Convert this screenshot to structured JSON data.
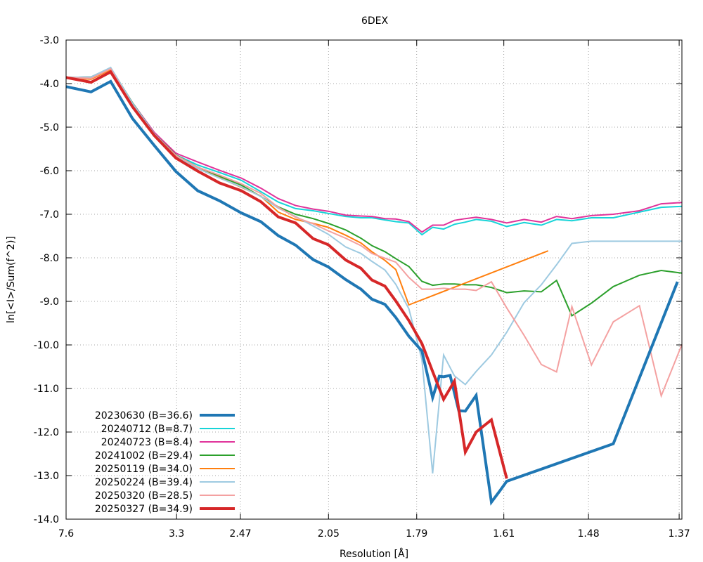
{
  "chart_data": {
    "type": "line",
    "title": "6DEX",
    "xlabel": "Resolution [Å]",
    "ylabel": "ln[<I>/Sum(f^2)]",
    "ylim": [
      -14.0,
      -3.0
    ],
    "yticks": [
      "-3.0",
      "-4.0",
      "-5.0",
      "-6.0",
      "-7.0",
      "-8.0",
      "-9.0",
      "-10.0",
      "-11.0",
      "-12.0",
      "-13.0",
      "-14.0"
    ],
    "xaxis_note": "x values are 1/d^2 (Å^-2); tick labels show resolution d in Å",
    "xlim": [
      0.0173,
      0.5351
    ],
    "xticks": [
      {
        "value": 0.01731,
        "label": "7.6"
      },
      {
        "value": 0.11019,
        "label": "3.3"
      },
      {
        "value": 0.1639,
        "label": "2.47"
      },
      {
        "value": 0.23795,
        "label": "2.05"
      },
      {
        "value": 0.31211,
        "label": "1.79"
      },
      {
        "value": 0.38536,
        "label": "1.61"
      },
      {
        "value": 0.45654,
        "label": "1.48"
      },
      {
        "value": 0.53279,
        "label": "1.37"
      }
    ],
    "grid": true,
    "legend_position": "bottom-left",
    "series": [
      {
        "name": "20230630 (B=36.6)",
        "color": "#1f77b4",
        "width": 4,
        "x": [
          0.0173,
          0.0383,
          0.0548,
          0.0731,
          0.0914,
          0.1097,
          0.128,
          0.1463,
          0.1646,
          0.181,
          0.1957,
          0.2103,
          0.225,
          0.2378,
          0.2524,
          0.2652,
          0.2744,
          0.2854,
          0.2945,
          0.3055,
          0.3165,
          0.3255,
          0.3311,
          0.3347,
          0.3402,
          0.3475,
          0.353,
          0.3621,
          0.3749,
          0.3823,
          0.3878,
          0.4774,
          0.5314
        ],
        "y": [
          -4.07,
          -4.19,
          -3.95,
          -4.8,
          -5.42,
          -6.02,
          -6.46,
          -6.69,
          -6.97,
          -7.17,
          -7.49,
          -7.71,
          -8.04,
          -8.21,
          -8.5,
          -8.72,
          -8.95,
          -9.07,
          -9.37,
          -9.8,
          -10.14,
          -11.21,
          -10.72,
          -10.73,
          -10.7,
          -11.51,
          -11.52,
          -11.16,
          -13.61,
          -13.34,
          -13.13,
          -12.27,
          -8.55
        ]
      },
      {
        "name": "20240712 (B=8.7)",
        "color": "#17d4d8",
        "width": 2,
        "x": [
          0.0173,
          0.0383,
          0.0548,
          0.0731,
          0.0914,
          0.1097,
          0.128,
          0.1463,
          0.1646,
          0.181,
          0.1957,
          0.2103,
          0.225,
          0.2378,
          0.2524,
          0.2652,
          0.2744,
          0.2854,
          0.2945,
          0.3055,
          0.3165,
          0.3255,
          0.3347,
          0.3438,
          0.353,
          0.3621,
          0.3749,
          0.3878,
          0.4024,
          0.4169,
          0.4297,
          0.4426,
          0.459,
          0.4774,
          0.4994,
          0.5177,
          0.5351
        ],
        "y": [
          -3.86,
          -3.85,
          -3.64,
          -4.45,
          -5.13,
          -5.64,
          -5.87,
          -6.04,
          -6.22,
          -6.48,
          -6.72,
          -6.87,
          -6.92,
          -6.98,
          -7.05,
          -7.08,
          -7.08,
          -7.13,
          -7.17,
          -7.2,
          -7.47,
          -7.3,
          -7.34,
          -7.23,
          -7.18,
          -7.12,
          -7.16,
          -7.28,
          -7.19,
          -7.25,
          -7.12,
          -7.15,
          -7.08,
          -7.08,
          -6.95,
          -6.84,
          -6.82
        ]
      },
      {
        "name": "20240723 (B=8.4)",
        "color": "#e0339a",
        "width": 2,
        "x": [
          0.0173,
          0.0383,
          0.0548,
          0.0731,
          0.0914,
          0.1097,
          0.128,
          0.1463,
          0.1646,
          0.181,
          0.1957,
          0.2103,
          0.225,
          0.2378,
          0.2524,
          0.2652,
          0.2744,
          0.2854,
          0.2945,
          0.3055,
          0.3165,
          0.3255,
          0.3347,
          0.3438,
          0.353,
          0.3621,
          0.3749,
          0.3878,
          0.4024,
          0.4169,
          0.4297,
          0.4426,
          0.459,
          0.4774,
          0.4994,
          0.5177,
          0.5351
        ],
        "y": [
          -3.86,
          -3.85,
          -3.64,
          -4.44,
          -5.12,
          -5.6,
          -5.8,
          -5.99,
          -6.17,
          -6.4,
          -6.64,
          -6.8,
          -6.88,
          -6.93,
          -7.02,
          -7.04,
          -7.05,
          -7.1,
          -7.11,
          -7.17,
          -7.41,
          -7.25,
          -7.25,
          -7.14,
          -7.1,
          -7.07,
          -7.12,
          -7.2,
          -7.12,
          -7.18,
          -7.05,
          -7.1,
          -7.03,
          -7.0,
          -6.92,
          -6.76,
          -6.73
        ]
      },
      {
        "name": "20241002 (B=29.4)",
        "color": "#2ca02c",
        "width": 2,
        "x": [
          0.0173,
          0.0383,
          0.0548,
          0.0731,
          0.0914,
          0.1097,
          0.128,
          0.1463,
          0.1646,
          0.181,
          0.1957,
          0.2103,
          0.225,
          0.2378,
          0.2524,
          0.2652,
          0.2744,
          0.2854,
          0.2945,
          0.3055,
          0.3165,
          0.3255,
          0.3347,
          0.3438,
          0.353,
          0.3621,
          0.3749,
          0.3878,
          0.4024,
          0.4169,
          0.4297,
          0.4426,
          0.459,
          0.4774,
          0.4994,
          0.5177,
          0.5351
        ],
        "y": [
          -3.86,
          -3.85,
          -3.64,
          -4.44,
          -5.15,
          -5.64,
          -5.92,
          -6.13,
          -6.33,
          -6.59,
          -6.83,
          -7.0,
          -7.1,
          -7.21,
          -7.36,
          -7.55,
          -7.72,
          -7.86,
          -8.02,
          -8.2,
          -8.54,
          -8.63,
          -8.6,
          -8.6,
          -8.62,
          -8.62,
          -8.68,
          -8.8,
          -8.76,
          -8.78,
          -8.52,
          -9.33,
          -9.04,
          -8.66,
          -8.4,
          -8.29,
          -8.35
        ]
      },
      {
        "name": "20250119 (B=34.0)",
        "color": "#ff7f0e",
        "width": 2,
        "x": [
          0.0173,
          0.0383,
          0.0548,
          0.0731,
          0.0914,
          0.1097,
          0.128,
          0.1463,
          0.1646,
          0.181,
          0.1957,
          0.2103,
          0.225,
          0.2378,
          0.2524,
          0.2652,
          0.2744,
          0.2854,
          0.2945,
          0.3055,
          0.4226
        ],
        "y": [
          -3.86,
          -3.9,
          -3.68,
          -4.53,
          -5.2,
          -5.7,
          -5.95,
          -6.16,
          -6.38,
          -6.58,
          -6.95,
          -7.12,
          -7.21,
          -7.3,
          -7.48,
          -7.66,
          -7.86,
          -8.06,
          -8.27,
          -9.08,
          -7.84
        ]
      },
      {
        "name": "20250224 (B=39.4)",
        "color": "#9ecae1",
        "width": 2,
        "x": [
          0.0173,
          0.0383,
          0.0548,
          0.0731,
          0.0914,
          0.1097,
          0.128,
          0.1463,
          0.1646,
          0.181,
          0.1957,
          0.2103,
          0.225,
          0.2378,
          0.2524,
          0.2652,
          0.2744,
          0.2854,
          0.2945,
          0.3055,
          0.3165,
          0.3255,
          0.3347,
          0.3438,
          0.353,
          0.3621,
          0.3749,
          0.3878,
          0.4024,
          0.4169,
          0.4297,
          0.4426,
          0.459,
          0.4774,
          0.4994,
          0.5177,
          0.5351
        ],
        "y": [
          -3.86,
          -3.85,
          -3.63,
          -4.45,
          -5.15,
          -5.66,
          -5.95,
          -6.17,
          -6.37,
          -6.59,
          -6.86,
          -7.05,
          -7.27,
          -7.46,
          -7.75,
          -7.9,
          -8.08,
          -8.28,
          -8.61,
          -9.17,
          -10.34,
          -12.95,
          -10.23,
          -10.71,
          -10.91,
          -10.61,
          -10.23,
          -9.71,
          -9.03,
          -8.62,
          -8.16,
          -7.67,
          -7.62,
          -7.62,
          -7.62,
          -7.62,
          -7.62
        ]
      },
      {
        "name": "20250320 (B=28.5)",
        "color": "#f4a1a1",
        "width": 2,
        "x": [
          0.0173,
          0.0383,
          0.0548,
          0.0731,
          0.0914,
          0.1097,
          0.128,
          0.1463,
          0.1646,
          0.181,
          0.1957,
          0.2103,
          0.225,
          0.2378,
          0.2524,
          0.2652,
          0.2744,
          0.2854,
          0.2945,
          0.3055,
          0.3165,
          0.3255,
          0.3347,
          0.3438,
          0.353,
          0.3621,
          0.3749,
          0.3878,
          0.4024,
          0.4169,
          0.4297,
          0.4426,
          0.459,
          0.4774,
          0.4994,
          0.5177,
          0.5351
        ],
        "y": [
          -3.86,
          -3.88,
          -3.66,
          -4.5,
          -5.17,
          -5.65,
          -5.92,
          -6.1,
          -6.3,
          -6.52,
          -6.84,
          -7.07,
          -7.22,
          -7.38,
          -7.55,
          -7.72,
          -7.9,
          -8.01,
          -8.1,
          -8.45,
          -8.72,
          -8.72,
          -8.7,
          -8.72,
          -8.72,
          -8.75,
          -8.55,
          -9.15,
          -9.78,
          -10.45,
          -10.62,
          -9.12,
          -10.46,
          -9.47,
          -9.1,
          -11.17,
          -9.99
        ]
      },
      {
        "name": "20250327 (B=34.9)",
        "color": "#d62728",
        "width": 4,
        "x": [
          0.0173,
          0.0383,
          0.0548,
          0.0731,
          0.0914,
          0.1097,
          0.128,
          0.1463,
          0.1646,
          0.181,
          0.1957,
          0.2103,
          0.225,
          0.2378,
          0.2524,
          0.2652,
          0.2744,
          0.2854,
          0.2945,
          0.3055,
          0.3165,
          0.3255,
          0.3347,
          0.3438,
          0.353,
          0.3621,
          0.3749,
          0.3878
        ],
        "y": [
          -3.86,
          -3.97,
          -3.73,
          -4.53,
          -5.19,
          -5.71,
          -6.01,
          -6.28,
          -6.46,
          -6.71,
          -7.06,
          -7.2,
          -7.56,
          -7.7,
          -8.05,
          -8.24,
          -8.51,
          -8.65,
          -8.99,
          -9.44,
          -9.97,
          -10.61,
          -11.25,
          -10.83,
          -12.46,
          -12.0,
          -11.72,
          -13.07
        ]
      }
    ]
  }
}
